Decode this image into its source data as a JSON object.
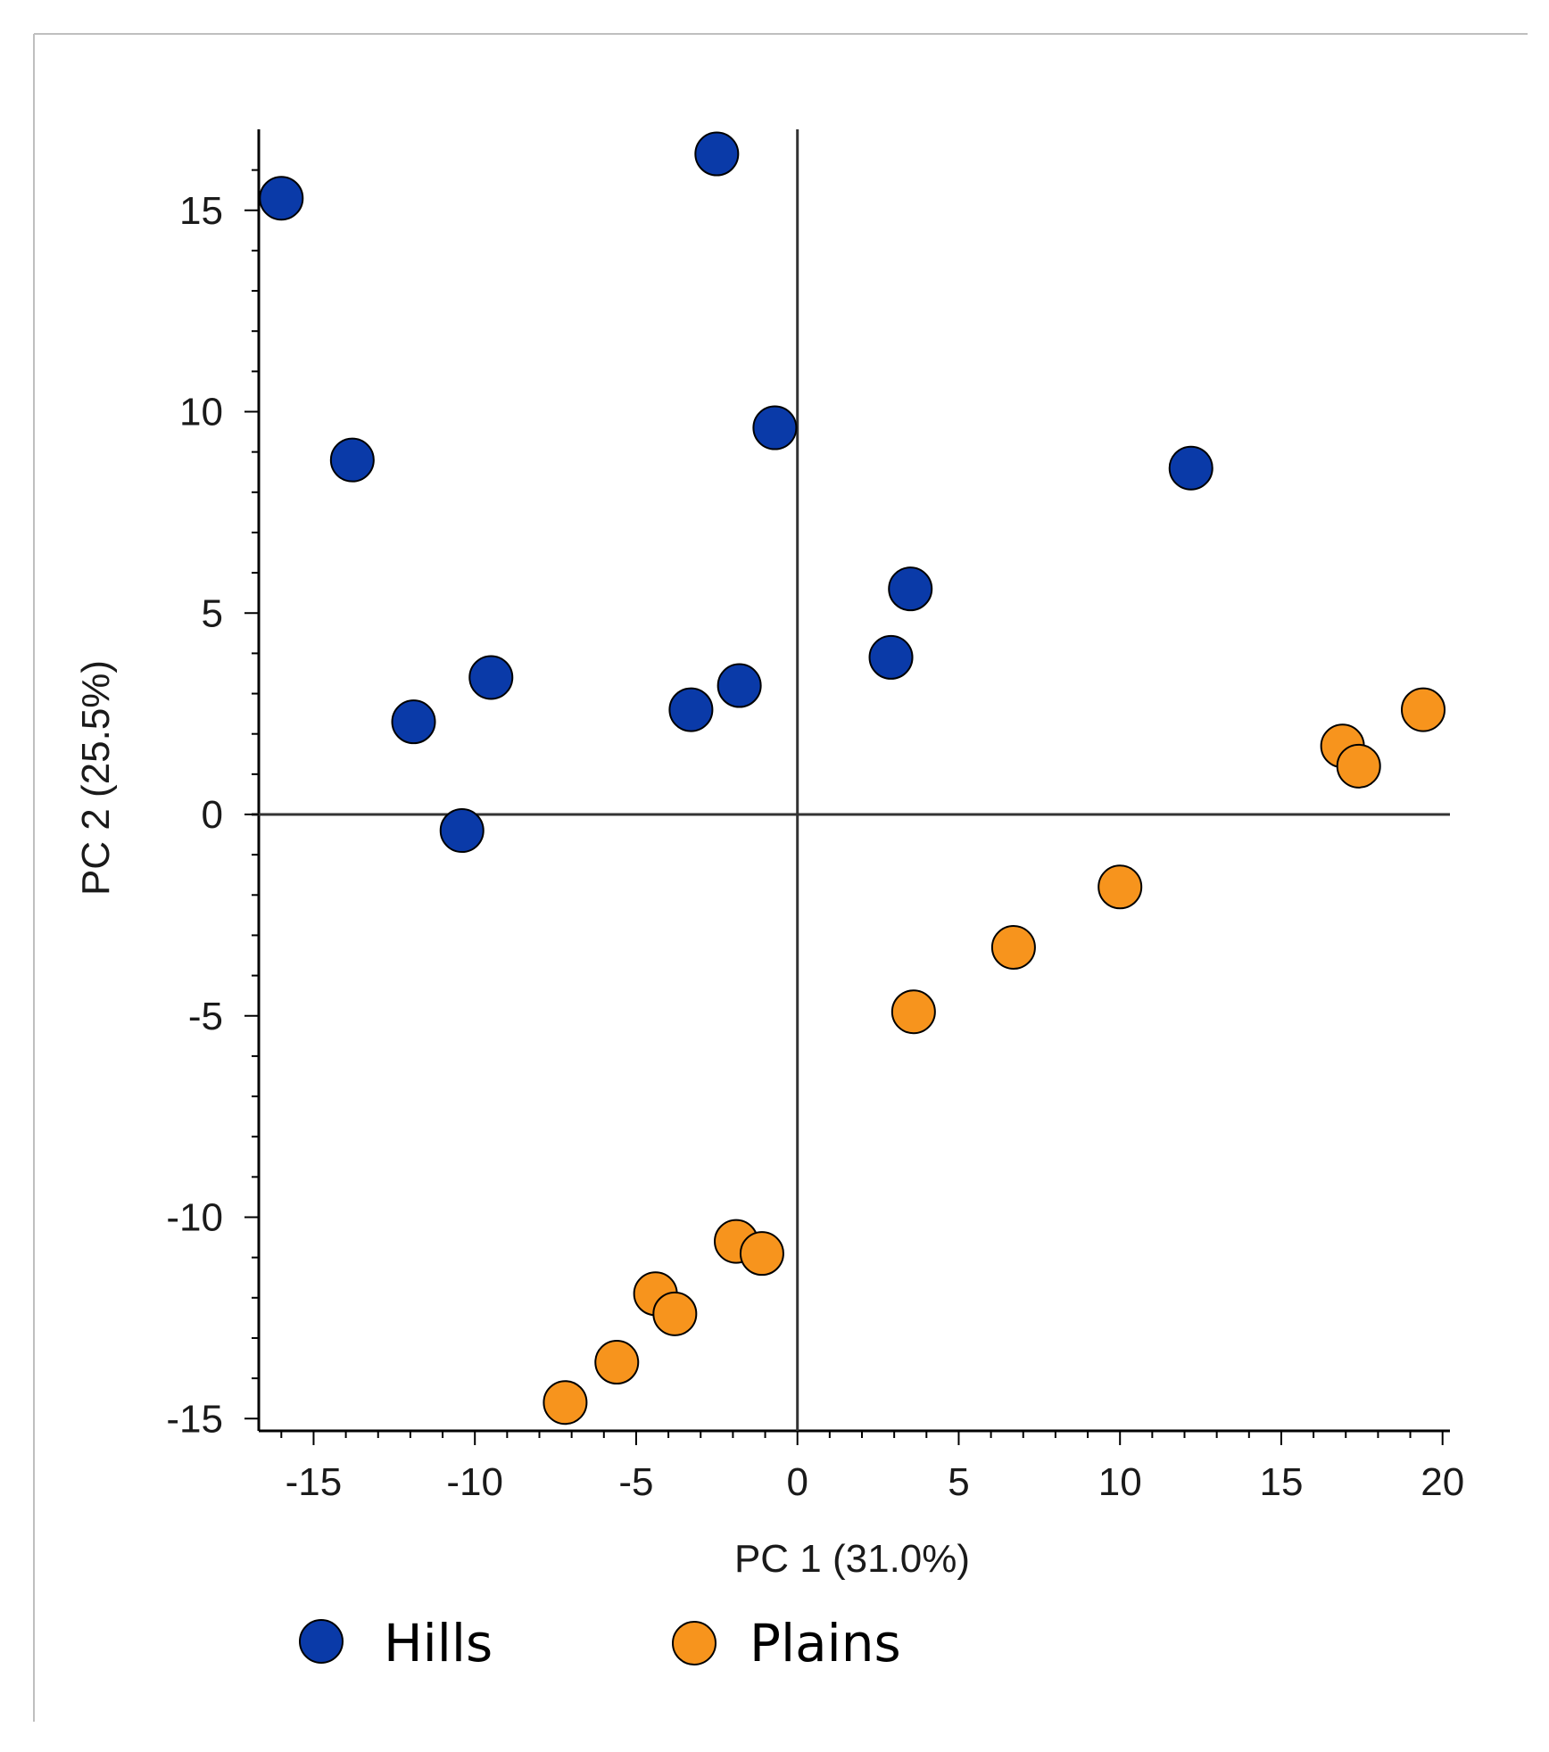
{
  "chart_data": {
    "type": "scatter",
    "title": "",
    "xlabel": "PC 1 (31.0%)",
    "ylabel": "PC 2 (25.5%)",
    "xlim": [
      -16.5,
      20
    ],
    "ylim": [
      -15,
      17
    ],
    "x_ticks": [
      -15,
      -10,
      -5,
      0,
      5,
      10,
      15,
      20
    ],
    "y_ticks": [
      15,
      10,
      5,
      0,
      -5,
      -10,
      -15
    ],
    "grid": false,
    "legend_position": "bottom",
    "series": [
      {
        "name": "Hills",
        "color": "#0a3aa8",
        "points": [
          {
            "x": -16.0,
            "y": 15.3
          },
          {
            "x": -2.5,
            "y": 16.4
          },
          {
            "x": -13.8,
            "y": 8.8
          },
          {
            "x": -0.7,
            "y": 9.6
          },
          {
            "x": 12.2,
            "y": 8.6
          },
          {
            "x": 3.5,
            "y": 5.6
          },
          {
            "x": 2.9,
            "y": 3.9
          },
          {
            "x": -9.5,
            "y": 3.4
          },
          {
            "x": -1.8,
            "y": 3.2
          },
          {
            "x": -3.3,
            "y": 2.6
          },
          {
            "x": -11.9,
            "y": 2.3
          },
          {
            "x": -10.4,
            "y": -0.4
          }
        ]
      },
      {
        "name": "Plains",
        "color": "#f7941d",
        "points": [
          {
            "x": 19.4,
            "y": 2.6
          },
          {
            "x": 16.9,
            "y": 1.7
          },
          {
            "x": 17.4,
            "y": 1.2
          },
          {
            "x": 10.0,
            "y": -1.8
          },
          {
            "x": 6.7,
            "y": -3.3
          },
          {
            "x": 3.6,
            "y": -4.9
          },
          {
            "x": -1.9,
            "y": -10.6
          },
          {
            "x": -1.1,
            "y": -10.9
          },
          {
            "x": -4.4,
            "y": -11.9
          },
          {
            "x": -3.8,
            "y": -12.4
          },
          {
            "x": -5.6,
            "y": -13.6
          },
          {
            "x": -7.2,
            "y": -14.6
          }
        ]
      }
    ]
  }
}
